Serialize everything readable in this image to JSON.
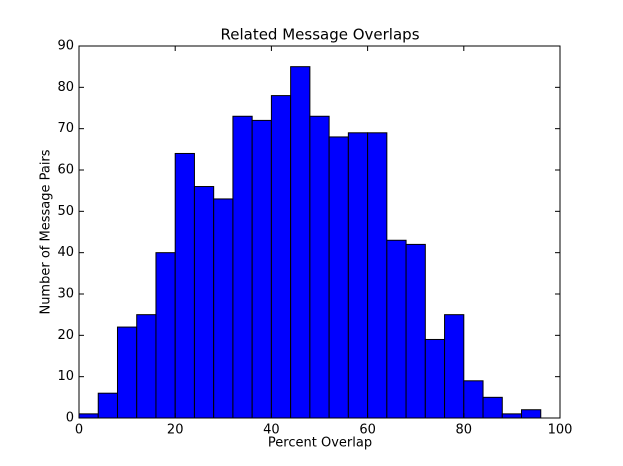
{
  "chart_data": {
    "type": "histogram",
    "title": "Related Message Overlaps",
    "x_label": "Percent Overlap",
    "y_label": "Number of Message Pairs",
    "bins": [
      0,
      4,
      8,
      12,
      16,
      20,
      24,
      28,
      32,
      36,
      40,
      44,
      48,
      52,
      56,
      60,
      64,
      68,
      72,
      76,
      80,
      84,
      88,
      92,
      96
    ],
    "values": [
      1,
      6,
      22,
      25,
      40,
      64,
      56,
      53,
      73,
      72,
      78,
      85,
      73,
      68,
      69,
      69,
      43,
      42,
      19,
      25,
      9,
      5,
      1,
      2
    ],
    "color": "#0000ff",
    "xlim": [
      0,
      100
    ],
    "xticks": [
      0,
      20,
      40,
      60,
      80,
      100
    ],
    "ylim": [
      0,
      90
    ],
    "yticks": [
      0,
      10,
      20,
      30,
      40,
      50,
      60,
      70,
      80,
      90
    ]
  }
}
